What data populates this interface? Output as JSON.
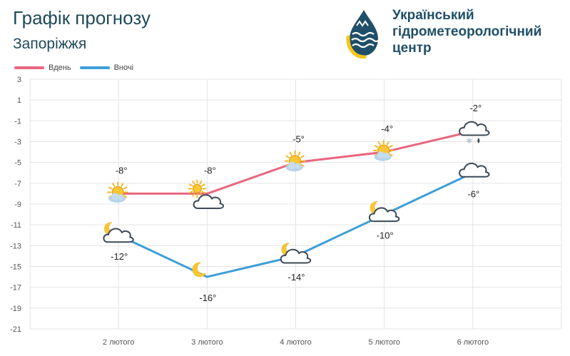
{
  "header": {
    "title": "Графік прогнозу",
    "city": "Запоріжжя"
  },
  "brand": {
    "line1": "Український",
    "line2": "гідрометеорологічний",
    "line3": "центр",
    "colors": {
      "primary": "#1f4f69",
      "accent": "#f5c518"
    }
  },
  "chart_data": {
    "type": "line",
    "title": "Графік прогнозу",
    "subtitle": "Запоріжжя",
    "categories": [
      "2 лютого",
      "3 лютого",
      "4 лютого",
      "5 лютого",
      "6 лютого"
    ],
    "ylim": [
      -21,
      3
    ],
    "yticks": [
      3,
      1,
      -1,
      -3,
      -5,
      -7,
      -9,
      -11,
      -13,
      -15,
      -17,
      -19,
      -21
    ],
    "grid": true,
    "legend_position": "top-left",
    "series": [
      {
        "name": "Вдень",
        "color": "#e8677f",
        "values": [
          -8,
          -8,
          -5,
          -4,
          -2
        ],
        "labels": [
          "-8°",
          "-8°",
          "-5°",
          "-4°",
          "-2°"
        ],
        "icons": [
          "sun-behind-cloud-icon",
          "sun-icon",
          "sun-behind-cloud-icon",
          "sun-behind-cloud-icon",
          "cloud-snow-rain-icon"
        ]
      },
      {
        "name": "Вночі",
        "color": "#3d9fd8",
        "values": [
          -12,
          -16,
          -14,
          -10,
          -6
        ],
        "labels": [
          "-12°",
          "-16°",
          "-14°",
          "-10°",
          "-6°"
        ],
        "icons": [
          "moon-behind-cloud-icon",
          "moon-icon",
          "moon-behind-cloud-icon",
          "moon-behind-cloud-icon",
          "cloud-icon"
        ]
      }
    ]
  }
}
